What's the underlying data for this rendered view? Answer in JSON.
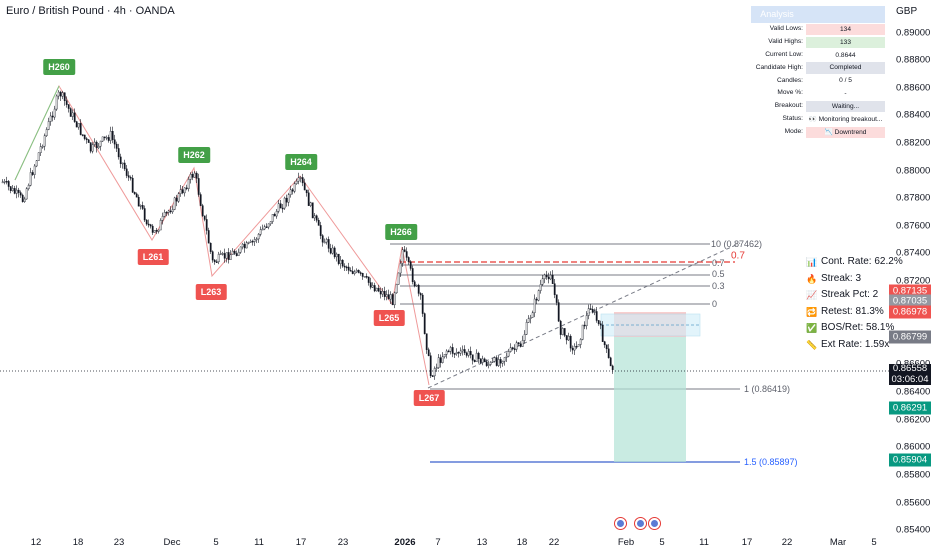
{
  "header": {
    "title": "Euro / British Pound · 4h · OANDA",
    "currency": "GBP"
  },
  "price_axis": {
    "ticks": [
      "0.89000",
      "0.88800",
      "0.88600",
      "0.88400",
      "0.88200",
      "0.88000",
      "0.87800",
      "0.87600",
      "0.87400",
      "0.87200",
      "0.87000",
      "0.86800",
      "0.86600",
      "0.86400",
      "0.86200",
      "0.86000",
      "0.85800",
      "0.85600",
      "0.85400"
    ]
  },
  "time_axis": {
    "ticks": [
      {
        "label": "12",
        "bold": false
      },
      {
        "label": "18",
        "bold": false
      },
      {
        "label": "23",
        "bold": false
      },
      {
        "label": "Dec",
        "bold": false
      },
      {
        "label": "5",
        "bold": false
      },
      {
        "label": "11",
        "bold": false
      },
      {
        "label": "17",
        "bold": false
      },
      {
        "label": "23",
        "bold": false
      },
      {
        "label": "2026",
        "bold": true
      },
      {
        "label": "7",
        "bold": false
      },
      {
        "label": "13",
        "bold": false
      },
      {
        "label": "18",
        "bold": false
      },
      {
        "label": "22",
        "bold": false
      },
      {
        "label": "Feb",
        "bold": false
      },
      {
        "label": "5",
        "bold": false
      },
      {
        "label": "11",
        "bold": false
      },
      {
        "label": "17",
        "bold": false
      },
      {
        "label": "22",
        "bold": false
      },
      {
        "label": "Mar",
        "bold": false
      },
      {
        "label": "5",
        "bold": false
      }
    ]
  },
  "price_labels": [
    {
      "value": "0.87135",
      "color": "#ef5350"
    },
    {
      "value": "0.87035",
      "color": "#9598a1"
    },
    {
      "value": "0.86978",
      "color": "#ef5350"
    },
    {
      "value": "0.86799",
      "color": "#787b86"
    },
    {
      "value": "0.86291",
      "color": "#089981"
    },
    {
      "value": "0.85904",
      "color": "#089981"
    }
  ],
  "current_price": {
    "value": "0.86558",
    "countdown": "03:06:04"
  },
  "pivots": [
    {
      "label": "H260",
      "type": "high"
    },
    {
      "label": "L261",
      "type": "low"
    },
    {
      "label": "H262",
      "type": "high"
    },
    {
      "label": "L263",
      "type": "low"
    },
    {
      "label": "H264",
      "type": "high"
    },
    {
      "label": "L265",
      "type": "low"
    },
    {
      "label": "H266",
      "type": "high"
    },
    {
      "label": "L267",
      "type": "low"
    }
  ],
  "fib_levels": [
    {
      "text": "1",
      "style": "gray"
    },
    {
      "text": "0 (0.87462)",
      "style": "gray"
    },
    {
      "text": "0.7",
      "style": "red"
    },
    {
      "text": "0.7",
      "style": "gray"
    },
    {
      "text": "0.5",
      "style": "gray"
    },
    {
      "text": "0.3",
      "style": "gray"
    },
    {
      "text": "0",
      "style": "gray"
    },
    {
      "text": "1 (0.86419)",
      "style": "gray"
    },
    {
      "text": "1.5 (0.85897)",
      "style": "blue"
    }
  ],
  "analysis_panel": {
    "title": "Analysis",
    "rows": [
      {
        "label": "Valid Lows:",
        "value": "134",
        "bg": "#fcdcdc"
      },
      {
        "label": "Valid Highs:",
        "value": "133",
        "bg": "#dcf0dc"
      },
      {
        "label": "Current Low:",
        "value": "0.8644",
        "bg": "#ffffff"
      },
      {
        "label": "Candidate High:",
        "value": "Completed",
        "bg": "#e0e3eb"
      },
      {
        "label": "Candles:",
        "value": "0 / 5",
        "bg": "#ffffff"
      },
      {
        "label": "Move %:",
        "value": "-",
        "bg": "#ffffff"
      },
      {
        "label": "Breakout:",
        "value": "Waiting...",
        "bg": "#e0e3eb"
      },
      {
        "label": "Status:",
        "value": "👀 Monitoring breakout...",
        "bg": "#ffffff"
      },
      {
        "label": "Mode:",
        "value": "📉 Downtrend",
        "bg": "#fcdcdc"
      }
    ]
  },
  "stats": [
    {
      "icon": "bar-chart-icon",
      "glyph": "📊",
      "text": "Cont. Rate: 62.2%"
    },
    {
      "icon": "flame-icon",
      "glyph": "🔥",
      "text": "Streak: 3"
    },
    {
      "icon": "trend-chart-icon",
      "glyph": "📈",
      "text": "Streak Pct: 2"
    },
    {
      "icon": "retest-icon",
      "glyph": "🔁",
      "text": "Retest: 81.3%"
    },
    {
      "icon": "check-icon",
      "glyph": "✅",
      "text": "BOS/Ret: 58.1%"
    },
    {
      "icon": "ruler-icon",
      "glyph": "📏",
      "text": "Ext Rate: 1.59x"
    }
  ],
  "colors": {
    "up": "#131722",
    "zigzag_high": "#81c784",
    "zigzag_low": "#ef9a9a",
    "risk_zone": "#f7c5c5",
    "reward_zone": "#b2e3d5",
    "entry_zone": "#cfeefa",
    "fib_red": "#e53935",
    "fib_blue": "#5b7bd5"
  }
}
